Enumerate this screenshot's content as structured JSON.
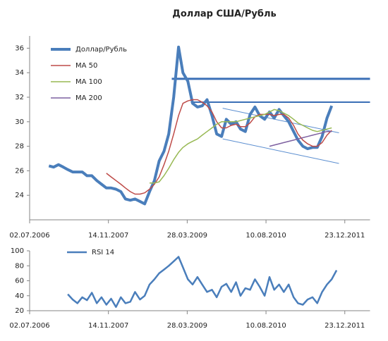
{
  "chart_data": [
    {
      "type": "line",
      "title": "Доллар США/Рубль",
      "legend": "upper left",
      "x": [
        "2006-11-01",
        "2006-12-01",
        "2007-01-01",
        "2007-02-01",
        "2007-03-01",
        "2007-04-01",
        "2007-05-01",
        "2007-06-01",
        "2007-07-01",
        "2007-08-01",
        "2007-09-01",
        "2007-10-01",
        "2007-11-01",
        "2007-12-01",
        "2008-01-01",
        "2008-02-01",
        "2008-03-01",
        "2008-04-01",
        "2008-05-01",
        "2008-06-01",
        "2008-07-01",
        "2008-08-01",
        "2008-09-01",
        "2008-10-01",
        "2008-11-01",
        "2008-12-01",
        "2009-01-01",
        "2009-02-01",
        "2009-03-01",
        "2009-04-01",
        "2009-05-01",
        "2009-06-01",
        "2009-07-01",
        "2009-08-01",
        "2009-09-01",
        "2009-10-01",
        "2009-11-01",
        "2009-12-01",
        "2010-01-01",
        "2010-02-01",
        "2010-03-01",
        "2010-04-01",
        "2010-05-01",
        "2010-06-01",
        "2010-07-01",
        "2010-08-01",
        "2010-09-01",
        "2010-10-01",
        "2010-11-01",
        "2010-12-01",
        "2011-01-01",
        "2011-02-01",
        "2011-03-01",
        "2011-04-01",
        "2011-05-01",
        "2011-06-01",
        "2011-07-01",
        "2011-08-01",
        "2011-09-01",
        "2011-10-01"
      ],
      "series": [
        {
          "name": "Доллар/Рубль",
          "color": "#4a7ebb",
          "width": 4,
          "values": [
            26.4,
            26.3,
            26.5,
            26.3,
            26.1,
            25.9,
            25.9,
            25.9,
            25.6,
            25.6,
            25.2,
            24.9,
            24.6,
            24.6,
            24.5,
            24.3,
            23.7,
            23.6,
            23.7,
            23.5,
            23.3,
            24.3,
            25.2,
            26.8,
            27.6,
            29.0,
            32.0,
            36.1,
            34.0,
            33.3,
            31.5,
            31.2,
            31.3,
            31.8,
            30.5,
            29.0,
            28.8,
            30.2,
            29.8,
            30.0,
            29.4,
            29.2,
            30.6,
            31.2,
            30.5,
            30.2,
            30.8,
            30.3,
            31.0,
            30.5,
            30.0,
            29.2,
            28.5,
            28.0,
            27.8,
            27.9,
            27.9,
            28.8,
            30.3,
            31.3
          ]
        },
        {
          "name": "MA 50",
          "color": "#be4b48",
          "width": 1.5,
          "values": [
            null,
            null,
            null,
            null,
            null,
            null,
            null,
            null,
            null,
            null,
            null,
            null,
            25.8,
            25.5,
            25.2,
            24.9,
            24.6,
            24.3,
            24.1,
            24.1,
            24.2,
            24.5,
            24.9,
            25.5,
            26.5,
            27.6,
            29.0,
            30.5,
            31.5,
            31.7,
            31.8,
            31.8,
            31.6,
            31.3,
            30.8,
            30.0,
            29.5,
            29.5,
            29.7,
            29.8,
            29.6,
            29.6,
            29.9,
            30.4,
            30.6,
            30.6,
            30.6,
            30.5,
            30.6,
            30.6,
            30.3,
            29.7,
            29.0,
            28.5,
            28.2,
            28.0,
            28.0,
            28.3,
            28.9,
            29.3
          ]
        },
        {
          "name": "MA 100",
          "color": "#98b954",
          "width": 1.5,
          "values": [
            null,
            null,
            null,
            null,
            null,
            null,
            null,
            null,
            null,
            null,
            null,
            null,
            null,
            null,
            null,
            null,
            null,
            null,
            null,
            null,
            null,
            25.0,
            25.0,
            25.1,
            25.6,
            26.2,
            26.9,
            27.5,
            27.9,
            28.2,
            28.4,
            28.6,
            28.9,
            29.2,
            29.5,
            29.8,
            30.0,
            30.0,
            30.0,
            30.0,
            30.1,
            30.2,
            30.3,
            30.4,
            30.5,
            30.6,
            30.8,
            31.0,
            30.9,
            30.7,
            30.5,
            30.2,
            29.9,
            29.7,
            29.5,
            29.3,
            29.2,
            29.3,
            29.4,
            29.5
          ]
        },
        {
          "name": "MA 200",
          "color": "#7d60a0",
          "width": 1.5,
          "values": [
            null,
            null,
            null,
            null,
            null,
            null,
            null,
            null,
            null,
            null,
            null,
            null,
            null,
            null,
            null,
            null,
            null,
            null,
            null,
            null,
            null,
            null,
            null,
            null,
            null,
            null,
            null,
            null,
            null,
            null,
            null,
            null,
            null,
            null,
            null,
            null,
            null,
            null,
            null,
            null,
            null,
            null,
            null,
            null,
            null,
            null,
            28.0,
            28.1,
            28.2,
            28.3,
            28.4,
            28.5,
            28.6,
            28.7,
            28.8,
            28.9,
            29.0,
            29.1,
            29.2,
            29.2
          ]
        }
      ],
      "trend_lines": [
        {
          "color": "#3b6fb6",
          "width": 3,
          "x": [
            "2008-12-20",
            "2012-05-31"
          ],
          "y": [
            33.5,
            33.5
          ]
        },
        {
          "color": "#3b6fb6",
          "width": 2,
          "x": [
            "2009-04-20",
            "2012-05-31"
          ],
          "y": [
            31.6,
            31.6
          ]
        },
        {
          "color": "#5b8ed0",
          "width": 1,
          "x": [
            "2009-11-08",
            "2011-11-16"
          ],
          "y": [
            31.1,
            29.1
          ]
        },
        {
          "color": "#5b8ed0",
          "width": 1,
          "x": [
            "2009-11-08",
            "2011-11-16"
          ],
          "y": [
            28.6,
            26.6
          ]
        }
      ],
      "xlim": [
        "2006-07-02",
        "2012-05-31"
      ],
      "xticks": [
        {
          "value": "2006-07-02",
          "label": "02.07.2006"
        },
        {
          "value": "2007-11-14",
          "label": "14.11.2007"
        },
        {
          "value": "2009-03-28",
          "label": "28.03.2009"
        },
        {
          "value": "2010-08-10",
          "label": "10.08.2010"
        },
        {
          "value": "2011-12-23",
          "label": "23.12.2011"
        }
      ],
      "ylim": [
        22,
        37
      ],
      "yticks": [
        24,
        26,
        28,
        30,
        32,
        34,
        36
      ]
    },
    {
      "type": "line",
      "legend": "upper left",
      "x": [
        "2007-03-01",
        "2007-04-01",
        "2007-05-01",
        "2007-06-01",
        "2007-07-01",
        "2007-08-01",
        "2007-09-01",
        "2007-10-01",
        "2007-11-01",
        "2007-12-01",
        "2008-01-01",
        "2008-02-01",
        "2008-03-01",
        "2008-04-01",
        "2008-05-01",
        "2008-06-01",
        "2008-07-01",
        "2008-08-01",
        "2008-09-01",
        "2008-10-01",
        "2008-11-01",
        "2008-12-01",
        "2009-01-01",
        "2009-02-01",
        "2009-03-01",
        "2009-04-01",
        "2009-05-01",
        "2009-06-01",
        "2009-07-01",
        "2009-08-01",
        "2009-09-01",
        "2009-10-01",
        "2009-11-01",
        "2009-12-01",
        "2010-01-01",
        "2010-02-01",
        "2010-03-01",
        "2010-04-01",
        "2010-05-01",
        "2010-06-01",
        "2010-07-01",
        "2010-08-01",
        "2010-09-01",
        "2010-10-01",
        "2010-11-01",
        "2010-12-01",
        "2011-01-01",
        "2011-02-01",
        "2011-03-01",
        "2011-04-01",
        "2011-05-01",
        "2011-06-01",
        "2011-07-01",
        "2011-08-01",
        "2011-09-01",
        "2011-10-01",
        "2011-11-01"
      ],
      "series": [
        {
          "name": "RSI 14",
          "color": "#4a7ebb",
          "width": 2.5,
          "values": [
            42,
            35,
            30,
            38,
            34,
            44,
            30,
            38,
            28,
            36,
            25,
            38,
            30,
            32,
            45,
            35,
            40,
            55,
            62,
            70,
            75,
            80,
            86,
            92,
            78,
            62,
            55,
            65,
            55,
            45,
            48,
            38,
            52,
            56,
            45,
            58,
            40,
            50,
            48,
            62,
            52,
            40,
            65,
            48,
            55,
            45,
            55,
            38,
            30,
            28,
            35,
            38,
            30,
            45,
            55,
            62,
            74
          ]
        }
      ],
      "xlim": [
        "2006-07-02",
        "2012-05-31"
      ],
      "xticks": [
        {
          "value": "2006-07-02",
          "label": "02.07.2006"
        },
        {
          "value": "2007-11-14",
          "label": "14.11.2007"
        },
        {
          "value": "2009-03-28",
          "label": "28.03.2009"
        },
        {
          "value": "2010-08-10",
          "label": "10.08.2010"
        },
        {
          "value": "2011-12-23",
          "label": "23.12.2011"
        }
      ],
      "ylim": [
        20,
        100
      ],
      "yticks": [
        20,
        40,
        60,
        80,
        100
      ]
    }
  ]
}
